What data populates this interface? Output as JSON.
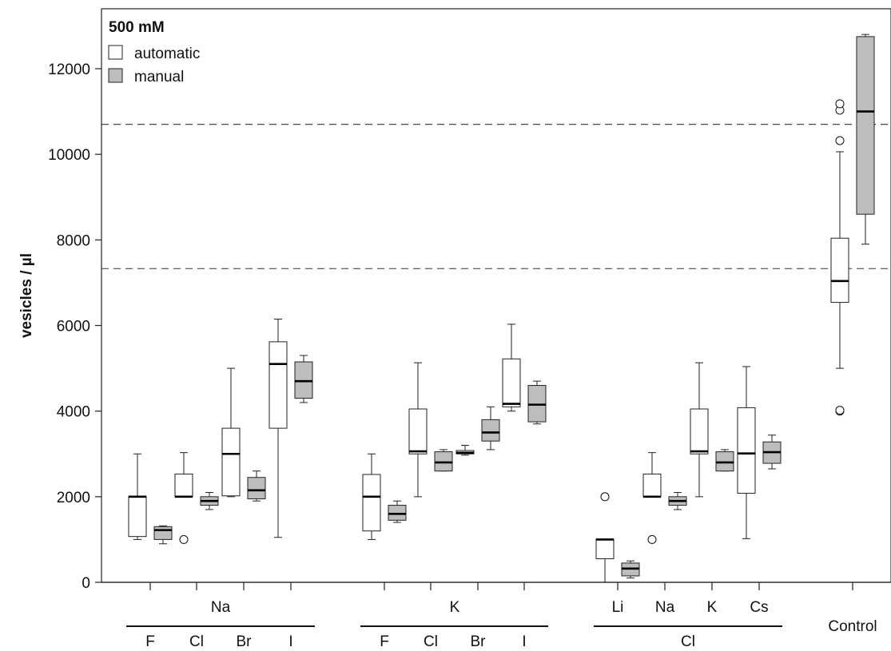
{
  "chart_data": {
    "type": "box",
    "title": "500 mM",
    "ylabel": "vesicles / µl",
    "ylim": [
      0,
      13400
    ],
    "yticks": [
      0,
      2000,
      4000,
      6000,
      8000,
      10000,
      12000
    ],
    "reference_lines": [
      7330,
      10700
    ],
    "legend": {
      "placement": "top-left",
      "items": [
        {
          "label": "automatic",
          "color": "#ffffff"
        },
        {
          "label": "manual",
          "color": "#bdbdbd"
        }
      ]
    },
    "group_labels": [
      {
        "label": "Na",
        "position": "top"
      },
      {
        "label": "K",
        "position": "top"
      },
      {
        "label": "Cl",
        "position": "bottom"
      }
    ],
    "categories": [
      {
        "sub": "F",
        "group": "Na",
        "automatic": {
          "min": 1000,
          "q1": 1070,
          "median": 2000,
          "q3": 2010,
          "max": 3000,
          "outliers": []
        },
        "manual": {
          "min": 900,
          "q1": 1000,
          "median": 1220,
          "q3": 1300,
          "max": 1320,
          "outliers": []
        }
      },
      {
        "sub": "Cl",
        "group": "Na",
        "automatic": {
          "min": 2000,
          "q1": 2000,
          "median": 2000,
          "q3": 2530,
          "max": 3030,
          "outliers": [
            1000
          ]
        },
        "manual": {
          "min": 1700,
          "q1": 1800,
          "median": 1900,
          "q3": 2000,
          "max": 2100,
          "outliers": []
        }
      },
      {
        "sub": "Br",
        "group": "Na",
        "automatic": {
          "min": 2000,
          "q1": 2020,
          "median": 3000,
          "q3": 3600,
          "max": 5000,
          "outliers": []
        },
        "manual": {
          "min": 1900,
          "q1": 1950,
          "median": 2150,
          "q3": 2450,
          "max": 2600,
          "outliers": []
        }
      },
      {
        "sub": "I",
        "group": "Na",
        "automatic": {
          "min": 1050,
          "q1": 3600,
          "median": 5100,
          "q3": 5620,
          "max": 6150,
          "outliers": []
        },
        "manual": {
          "min": 4200,
          "q1": 4300,
          "median": 4700,
          "q3": 5150,
          "max": 5300,
          "outliers": []
        }
      },
      {
        "sub": "F",
        "group": "K",
        "automatic": {
          "min": 1000,
          "q1": 1200,
          "median": 2000,
          "q3": 2520,
          "max": 3000,
          "outliers": []
        },
        "manual": {
          "min": 1400,
          "q1": 1450,
          "median": 1600,
          "q3": 1800,
          "max": 1900,
          "outliers": []
        }
      },
      {
        "sub": "Cl",
        "group": "K",
        "automatic": {
          "min": 2000,
          "q1": 3000,
          "median": 3060,
          "q3": 4050,
          "max": 5130,
          "outliers": []
        },
        "manual": {
          "min": 2600,
          "q1": 2600,
          "median": 2800,
          "q3": 3050,
          "max": 3100,
          "outliers": []
        }
      },
      {
        "sub": "Br",
        "group": "K",
        "automatic": {
          "min": 2970,
          "q1": 3000,
          "median": 3030,
          "q3": 3080,
          "max": 3200,
          "outliers": []
        },
        "manual": {
          "min": 3100,
          "q1": 3300,
          "median": 3500,
          "q3": 3800,
          "max": 4100,
          "outliers": []
        }
      },
      {
        "sub": "I",
        "group": "K",
        "automatic": {
          "min": 4000,
          "q1": 4100,
          "median": 4170,
          "q3": 5220,
          "max": 6030,
          "outliers": []
        },
        "manual": {
          "min": 3700,
          "q1": 3750,
          "median": 4150,
          "q3": 4600,
          "max": 4700,
          "outliers": []
        }
      },
      {
        "sub": "Li",
        "group": "Cl",
        "automatic": {
          "min": 0,
          "q1": 550,
          "median": 1000,
          "q3": 1010,
          "max": 1010,
          "outliers": [
            2000
          ]
        },
        "manual": {
          "min": 100,
          "q1": 150,
          "median": 320,
          "q3": 450,
          "max": 500,
          "outliers": []
        }
      },
      {
        "sub": "Na",
        "group": "Cl",
        "automatic": {
          "min": 2000,
          "q1": 2000,
          "median": 2000,
          "q3": 2530,
          "max": 3030,
          "outliers": [
            1000
          ]
        },
        "manual": {
          "min": 1700,
          "q1": 1800,
          "median": 1900,
          "q3": 2000,
          "max": 2100,
          "outliers": []
        }
      },
      {
        "sub": "K",
        "group": "Cl",
        "automatic": {
          "min": 2000,
          "q1": 3000,
          "median": 3060,
          "q3": 4050,
          "max": 5130,
          "outliers": []
        },
        "manual": {
          "min": 2600,
          "q1": 2600,
          "median": 2800,
          "q3": 3050,
          "max": 3100,
          "outliers": []
        }
      },
      {
        "sub": "Cs",
        "group": "Cl",
        "automatic": {
          "min": 1020,
          "q1": 2080,
          "median": 3010,
          "q3": 4080,
          "max": 5040,
          "outliers": []
        },
        "manual": {
          "min": 2650,
          "q1": 2780,
          "median": 3040,
          "q3": 3280,
          "max": 3440,
          "outliers": []
        }
      },
      {
        "sub": "Control",
        "group": "",
        "automatic": {
          "min": 5000,
          "q1": 6540,
          "median": 7040,
          "q3": 8040,
          "max": 10060,
          "outliers": [
            4000,
            4020,
            10320,
            11030,
            11180
          ]
        },
        "manual": {
          "min": 7900,
          "q1": 8600,
          "median": 11000,
          "q3": 12750,
          "max": 12800,
          "outliers": []
        }
      }
    ]
  }
}
